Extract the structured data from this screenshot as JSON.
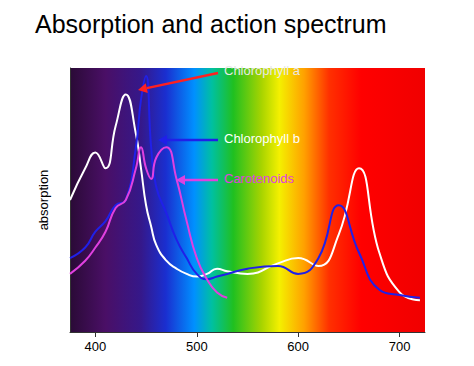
{
  "chart_data": {
    "type": "line",
    "title": "Absorption and action spectrum",
    "y_label": "absorption",
    "x": [
      375,
      390,
      400,
      410,
      420,
      430,
      440,
      445,
      450,
      455,
      460,
      470,
      480,
      490,
      500,
      510,
      520,
      530,
      550,
      580,
      600,
      620,
      640,
      660,
      680,
      700,
      720
    ],
    "series": [
      {
        "name": "Chlorophyll a",
        "color": "#ffffff",
        "values": [
          50,
          62,
          68,
          62,
          78,
          90,
          75,
          62,
          48,
          40,
          33,
          27,
          24,
          22,
          21,
          22,
          24,
          23,
          22,
          26,
          28,
          25,
          37,
          62,
          30,
          15,
          12
        ]
      },
      {
        "name": "Chlorophyll b",
        "color": "#2020e8",
        "values": [
          28,
          32,
          38,
          42,
          48,
          50,
          70,
          88,
          97,
          70,
          55,
          45,
          35,
          28,
          22,
          20,
          21,
          22,
          24,
          25,
          22,
          28,
          48,
          30,
          16,
          14,
          13
        ]
      },
      {
        "name": "Carotenoids",
        "color": "#e040e0",
        "values": [
          22,
          27,
          32,
          38,
          47,
          50,
          62,
          70,
          62,
          58,
          66,
          70,
          58,
          42,
          28,
          20,
          15,
          13,
          null,
          null,
          null,
          null,
          null,
          null,
          null,
          null,
          null
        ]
      }
    ],
    "xlim": [
      375,
      725
    ],
    "xticks": [
      400,
      500,
      600,
      700
    ],
    "ylim": [
      0,
      100
    ],
    "tick_labels": "x",
    "grid": false
  }
}
